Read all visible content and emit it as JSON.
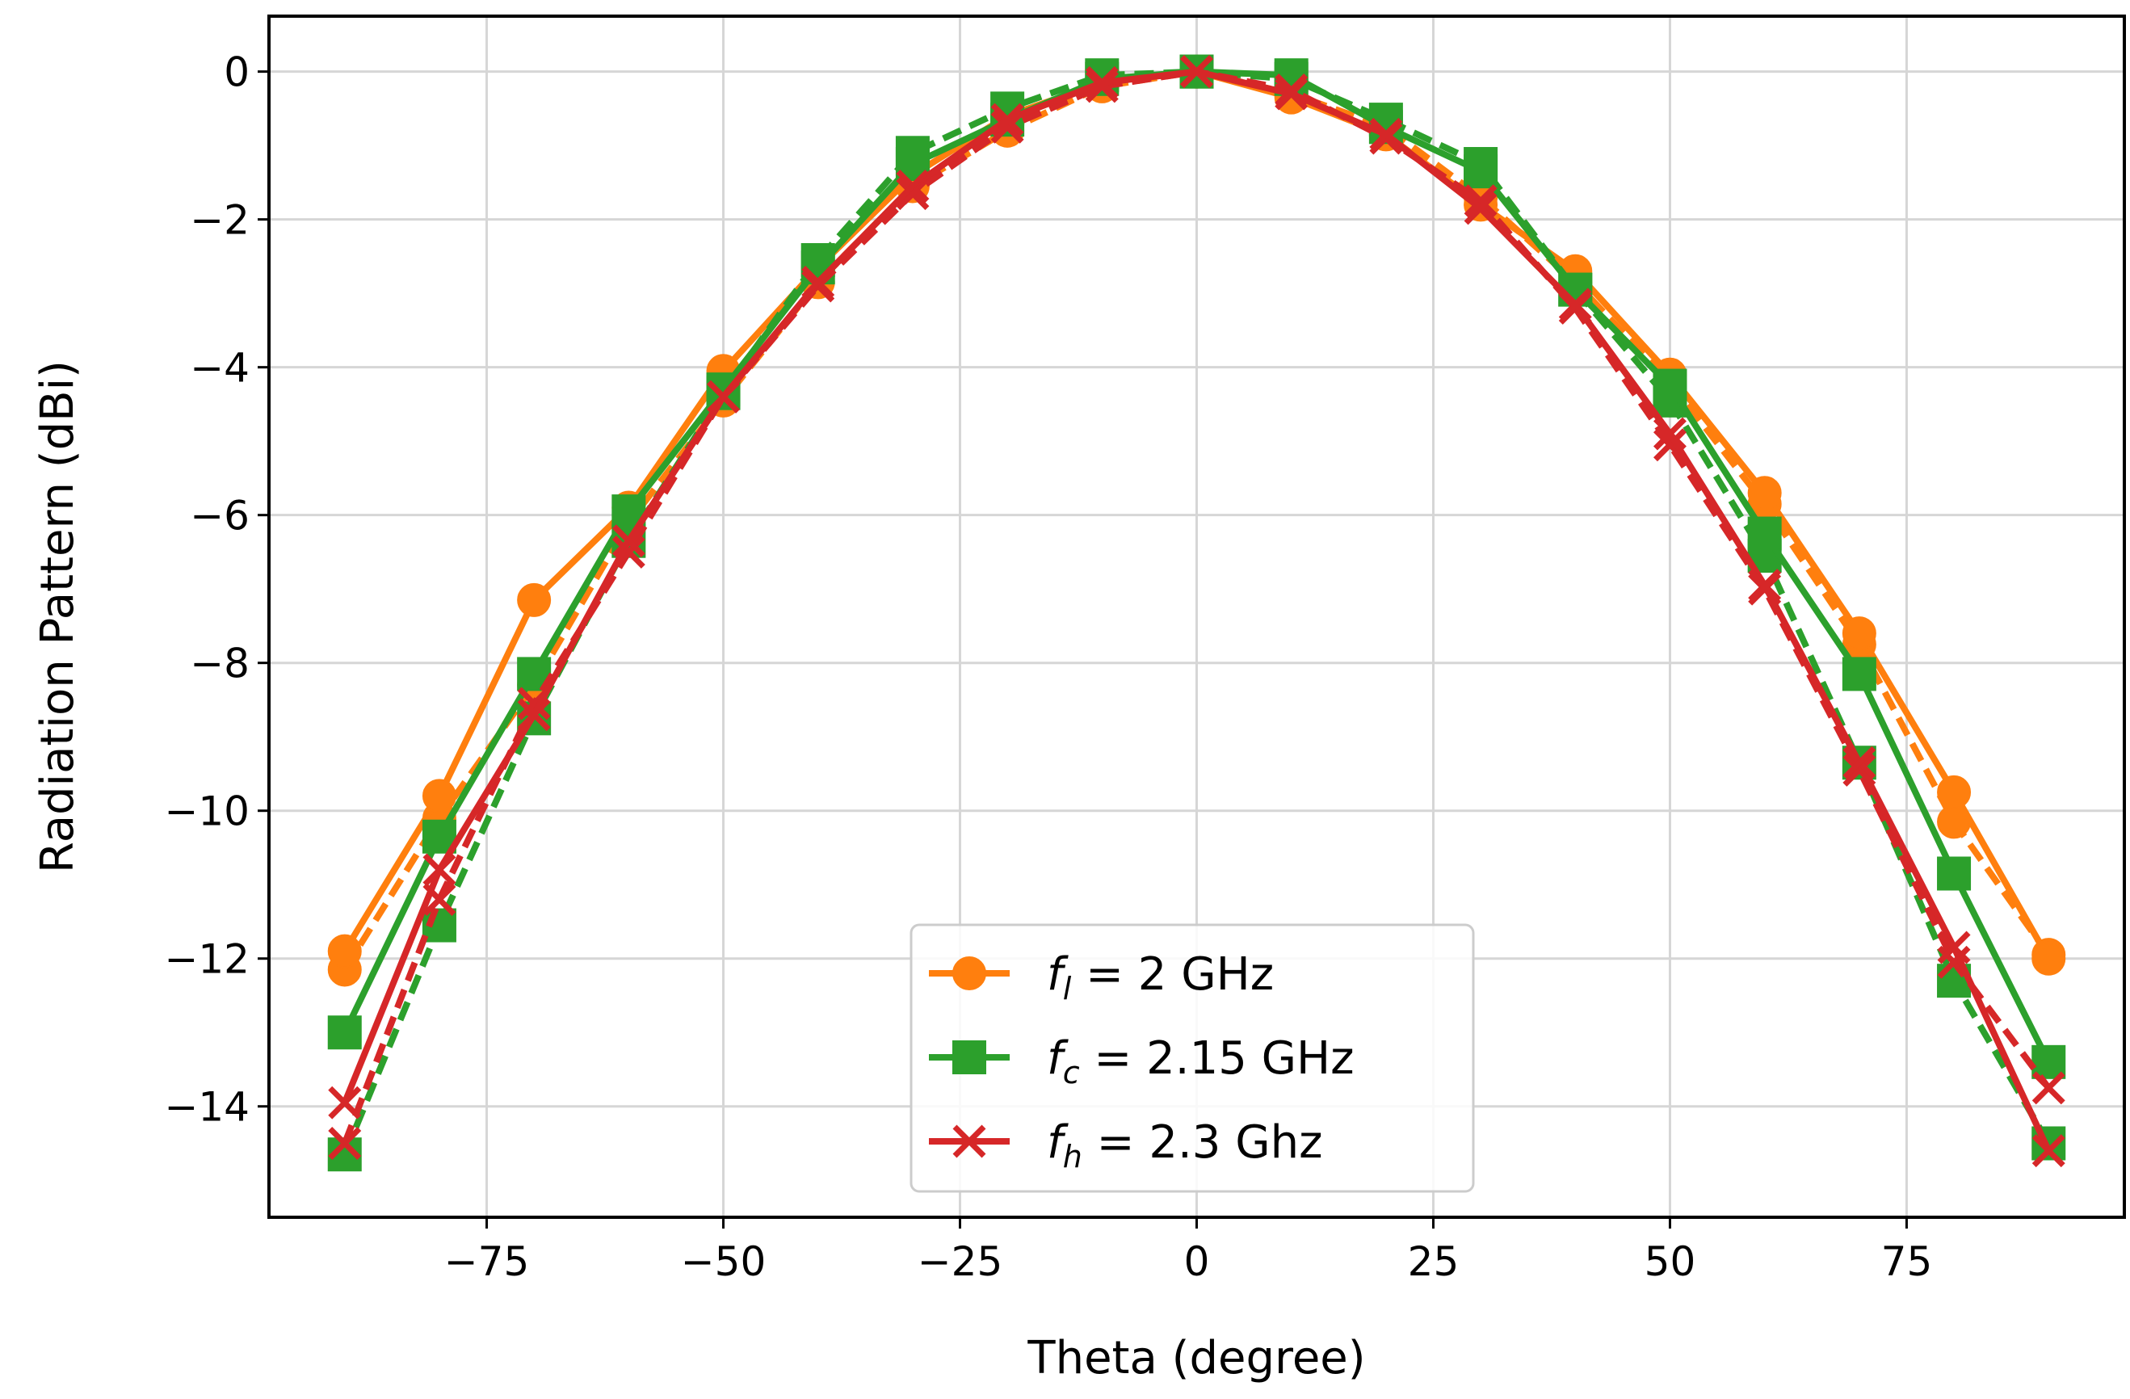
{
  "chart_data": {
    "type": "line",
    "title": "",
    "xlabel": "Theta (degree)",
    "ylabel": "Radiation Pattern (dBi)",
    "xlim": [
      -98,
      98
    ],
    "ylim": [
      -15.5,
      0.75
    ],
    "xticks": [
      -75,
      -50,
      -25,
      0,
      25,
      50,
      75
    ],
    "yticks": [
      0,
      -2,
      -4,
      -6,
      -8,
      -10,
      -12,
      -14
    ],
    "xtick_labels": [
      "−75",
      "−50",
      "−25",
      "0",
      "25",
      "50",
      "75"
    ],
    "ytick_labels": [
      "0",
      "−2",
      "−4",
      "−6",
      "−8",
      "−10",
      "−12",
      "−14"
    ],
    "grid": true,
    "legend_position": "bottom-center",
    "x": [
      -90,
      -80,
      -70,
      -60,
      -50,
      -40,
      -30,
      -20,
      -10,
      0,
      10,
      20,
      30,
      40,
      50,
      60,
      70,
      80,
      90
    ],
    "series": [
      {
        "name": "f_l = 2 GHz",
        "legend_symbol": "f",
        "legend_subscript": "l",
        "legend_rest": " = 2 GHz",
        "color": "#ff7f0e",
        "marker": "circle",
        "measured": [
          -11.9,
          -9.8,
          -7.15,
          -5.9,
          -4.05,
          -2.65,
          -1.4,
          -0.6,
          -0.15,
          0,
          -0.35,
          -0.85,
          -1.8,
          -2.7,
          -4.1,
          -5.7,
          -7.6,
          -9.75,
          -12.0
        ],
        "simulated": [
          -12.15,
          -10.1,
          -8.3,
          -6.1,
          -4.45,
          -2.85,
          -1.55,
          -0.8,
          -0.2,
          0,
          -0.3,
          -0.75,
          -1.7,
          -2.85,
          -4.2,
          -5.85,
          -7.75,
          -10.15,
          -11.95
        ]
      },
      {
        "name": "f_c = 2.15 GHz",
        "legend_symbol": "f",
        "legend_subscript": "c",
        "legend_rest": " = 2.15 GHz",
        "color": "#2ca02c",
        "marker": "square",
        "measured": [
          -13.0,
          -10.35,
          -8.15,
          -5.95,
          -4.3,
          -2.65,
          -1.25,
          -0.65,
          -0.1,
          0,
          -0.05,
          -0.75,
          -1.35,
          -2.95,
          -4.25,
          -6.25,
          -8.15,
          -10.85,
          -13.4
        ],
        "simulated": [
          -14.65,
          -11.55,
          -8.75,
          -6.35,
          -4.35,
          -2.55,
          -1.1,
          -0.5,
          -0.05,
          0,
          -0.1,
          -0.65,
          -1.25,
          -2.95,
          -4.45,
          -6.55,
          -9.35,
          -12.3,
          -14.5
        ]
      },
      {
        "name": "f_h = 2.3 Ghz",
        "legend_symbol": "f",
        "legend_subscript": "h",
        "legend_rest": " = 2.3 Ghz",
        "color": "#d62728",
        "marker": "x",
        "measured": [
          -13.95,
          -10.8,
          -8.7,
          -6.35,
          -4.4,
          -2.85,
          -1.55,
          -0.65,
          -0.15,
          0,
          -0.3,
          -0.85,
          -1.85,
          -3.15,
          -4.9,
          -6.95,
          -9.35,
          -11.85,
          -14.6
        ],
        "simulated": [
          -14.5,
          -11.2,
          -8.55,
          -6.5,
          -4.4,
          -2.9,
          -1.65,
          -0.75,
          -0.2,
          0,
          -0.25,
          -0.9,
          -1.75,
          -3.2,
          -5.05,
          -7.0,
          -9.45,
          -12.05,
          -13.75
        ]
      }
    ]
  }
}
